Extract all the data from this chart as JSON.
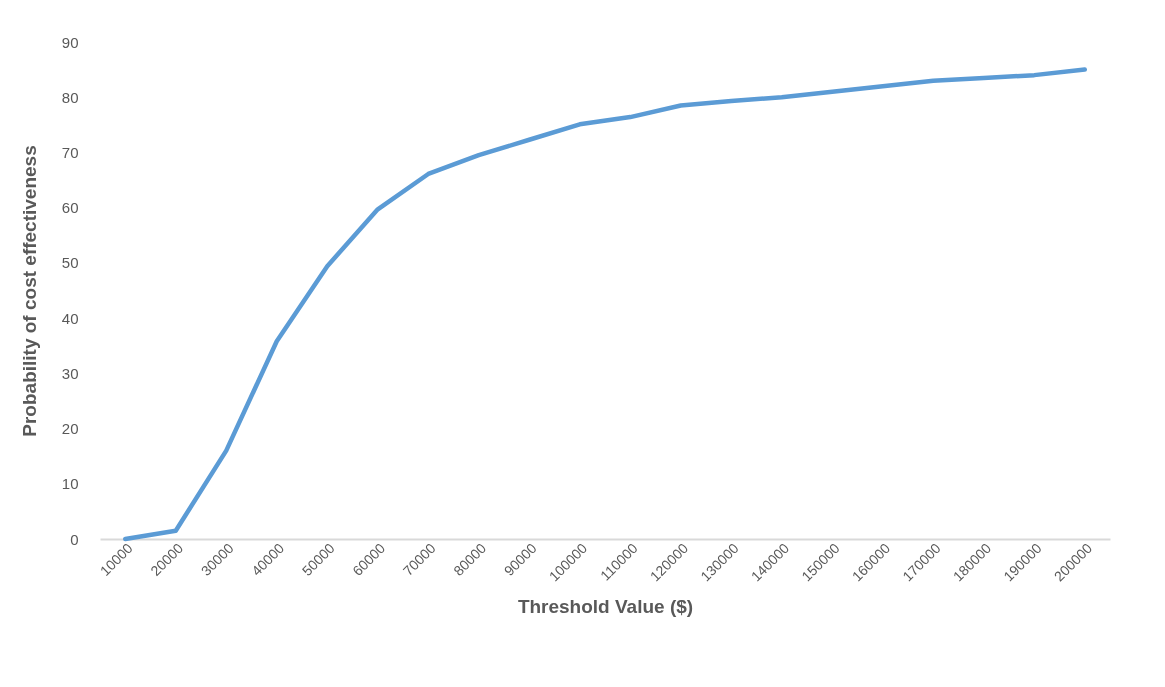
{
  "chart_data": {
    "type": "line",
    "xlabel": "Threshold Value ($)",
    "ylabel": "Probability of cost effectiveness",
    "categories": [
      "10000",
      "20000",
      "30000",
      "40000",
      "50000",
      "60000",
      "70000",
      "80000",
      "90000",
      "100000",
      "110000",
      "120000",
      "130000",
      "140000",
      "150000",
      "160000",
      "170000",
      "180000",
      "190000",
      "200000"
    ],
    "series": [
      {
        "color": "#5b9bd5",
        "values": [
          0,
          1.5,
          16,
          35.8,
          49.4,
          59.7,
          66.1,
          69.5,
          72.3,
          75.1,
          76.4,
          78.5,
          79.3,
          80,
          81,
          82,
          83,
          83.5,
          84,
          85
        ]
      }
    ],
    "ylim": [
      0,
      90
    ],
    "yticks": [
      0,
      10,
      20,
      30,
      40,
      50,
      60,
      70,
      80,
      90
    ],
    "grid": false,
    "marker": "none",
    "line_style": "solid"
  }
}
